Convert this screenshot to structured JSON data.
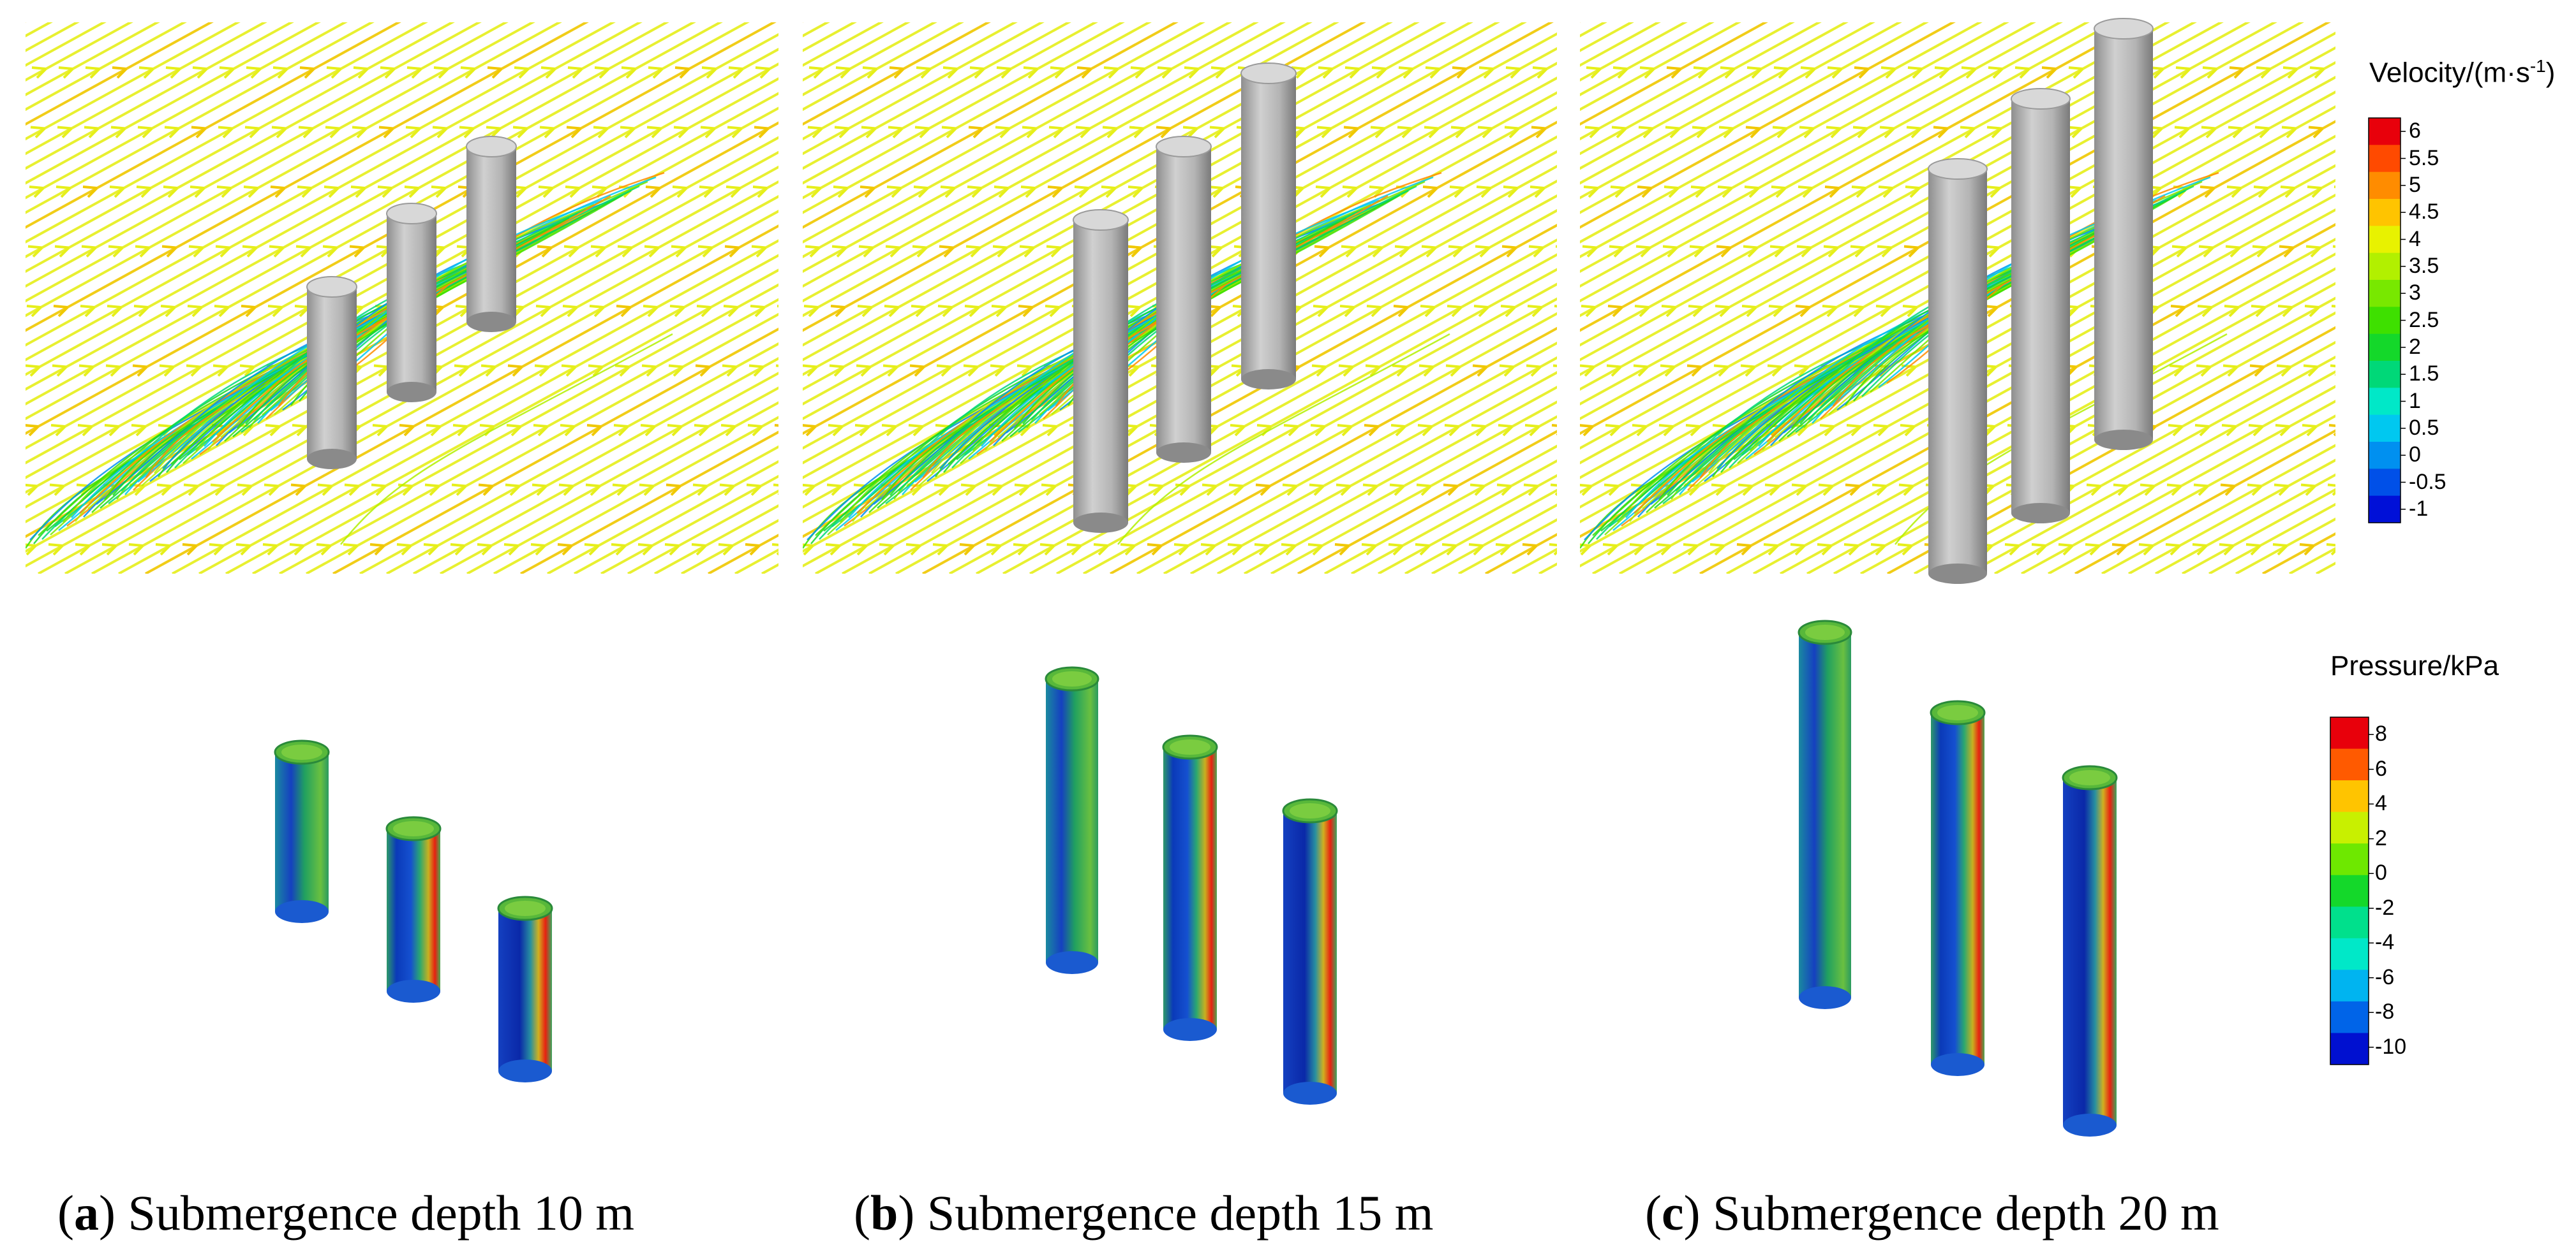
{
  "panels": [
    {
      "id": "a",
      "letter": "a",
      "caption": "Submergence depth 10 m",
      "depth_m": 10
    },
    {
      "id": "b",
      "letter": "b",
      "caption": "Submergence depth 15 m",
      "depth_m": 15
    },
    {
      "id": "c",
      "letter": "c",
      "caption": "Submergence depth 20 m",
      "depth_m": 20
    }
  ],
  "velocity_legend": {
    "title_main": "Velocity/(m·s",
    "title_sup": "-1",
    "title_end": ")",
    "ticks": [
      "6",
      "5.5",
      "5",
      "4.5",
      "4",
      "3.5",
      "3",
      "2.5",
      "2",
      "1.5",
      "1",
      "0.5",
      "0",
      "-0.5",
      "-1"
    ],
    "colors": [
      "#e8000b",
      "#ff4a00",
      "#ff8c00",
      "#ffc400",
      "#e8f200",
      "#b2f000",
      "#78e800",
      "#3ee000",
      "#14d82a",
      "#00d878",
      "#00e8c8",
      "#00c8f0",
      "#0090f0",
      "#0050e8",
      "#0010d8"
    ]
  },
  "pressure_legend": {
    "title": "Pressure/kPa",
    "ticks": [
      "8",
      "6",
      "4",
      "2",
      "0",
      "-2",
      "-4",
      "-6",
      "-8",
      "-10"
    ],
    "colors": [
      "#e8000b",
      "#ff5a00",
      "#ffc400",
      "#c8f000",
      "#6ee800",
      "#14d82a",
      "#00e08c",
      "#00e8c8",
      "#00b4f0",
      "#0064e8",
      "#0010d0"
    ]
  }
}
